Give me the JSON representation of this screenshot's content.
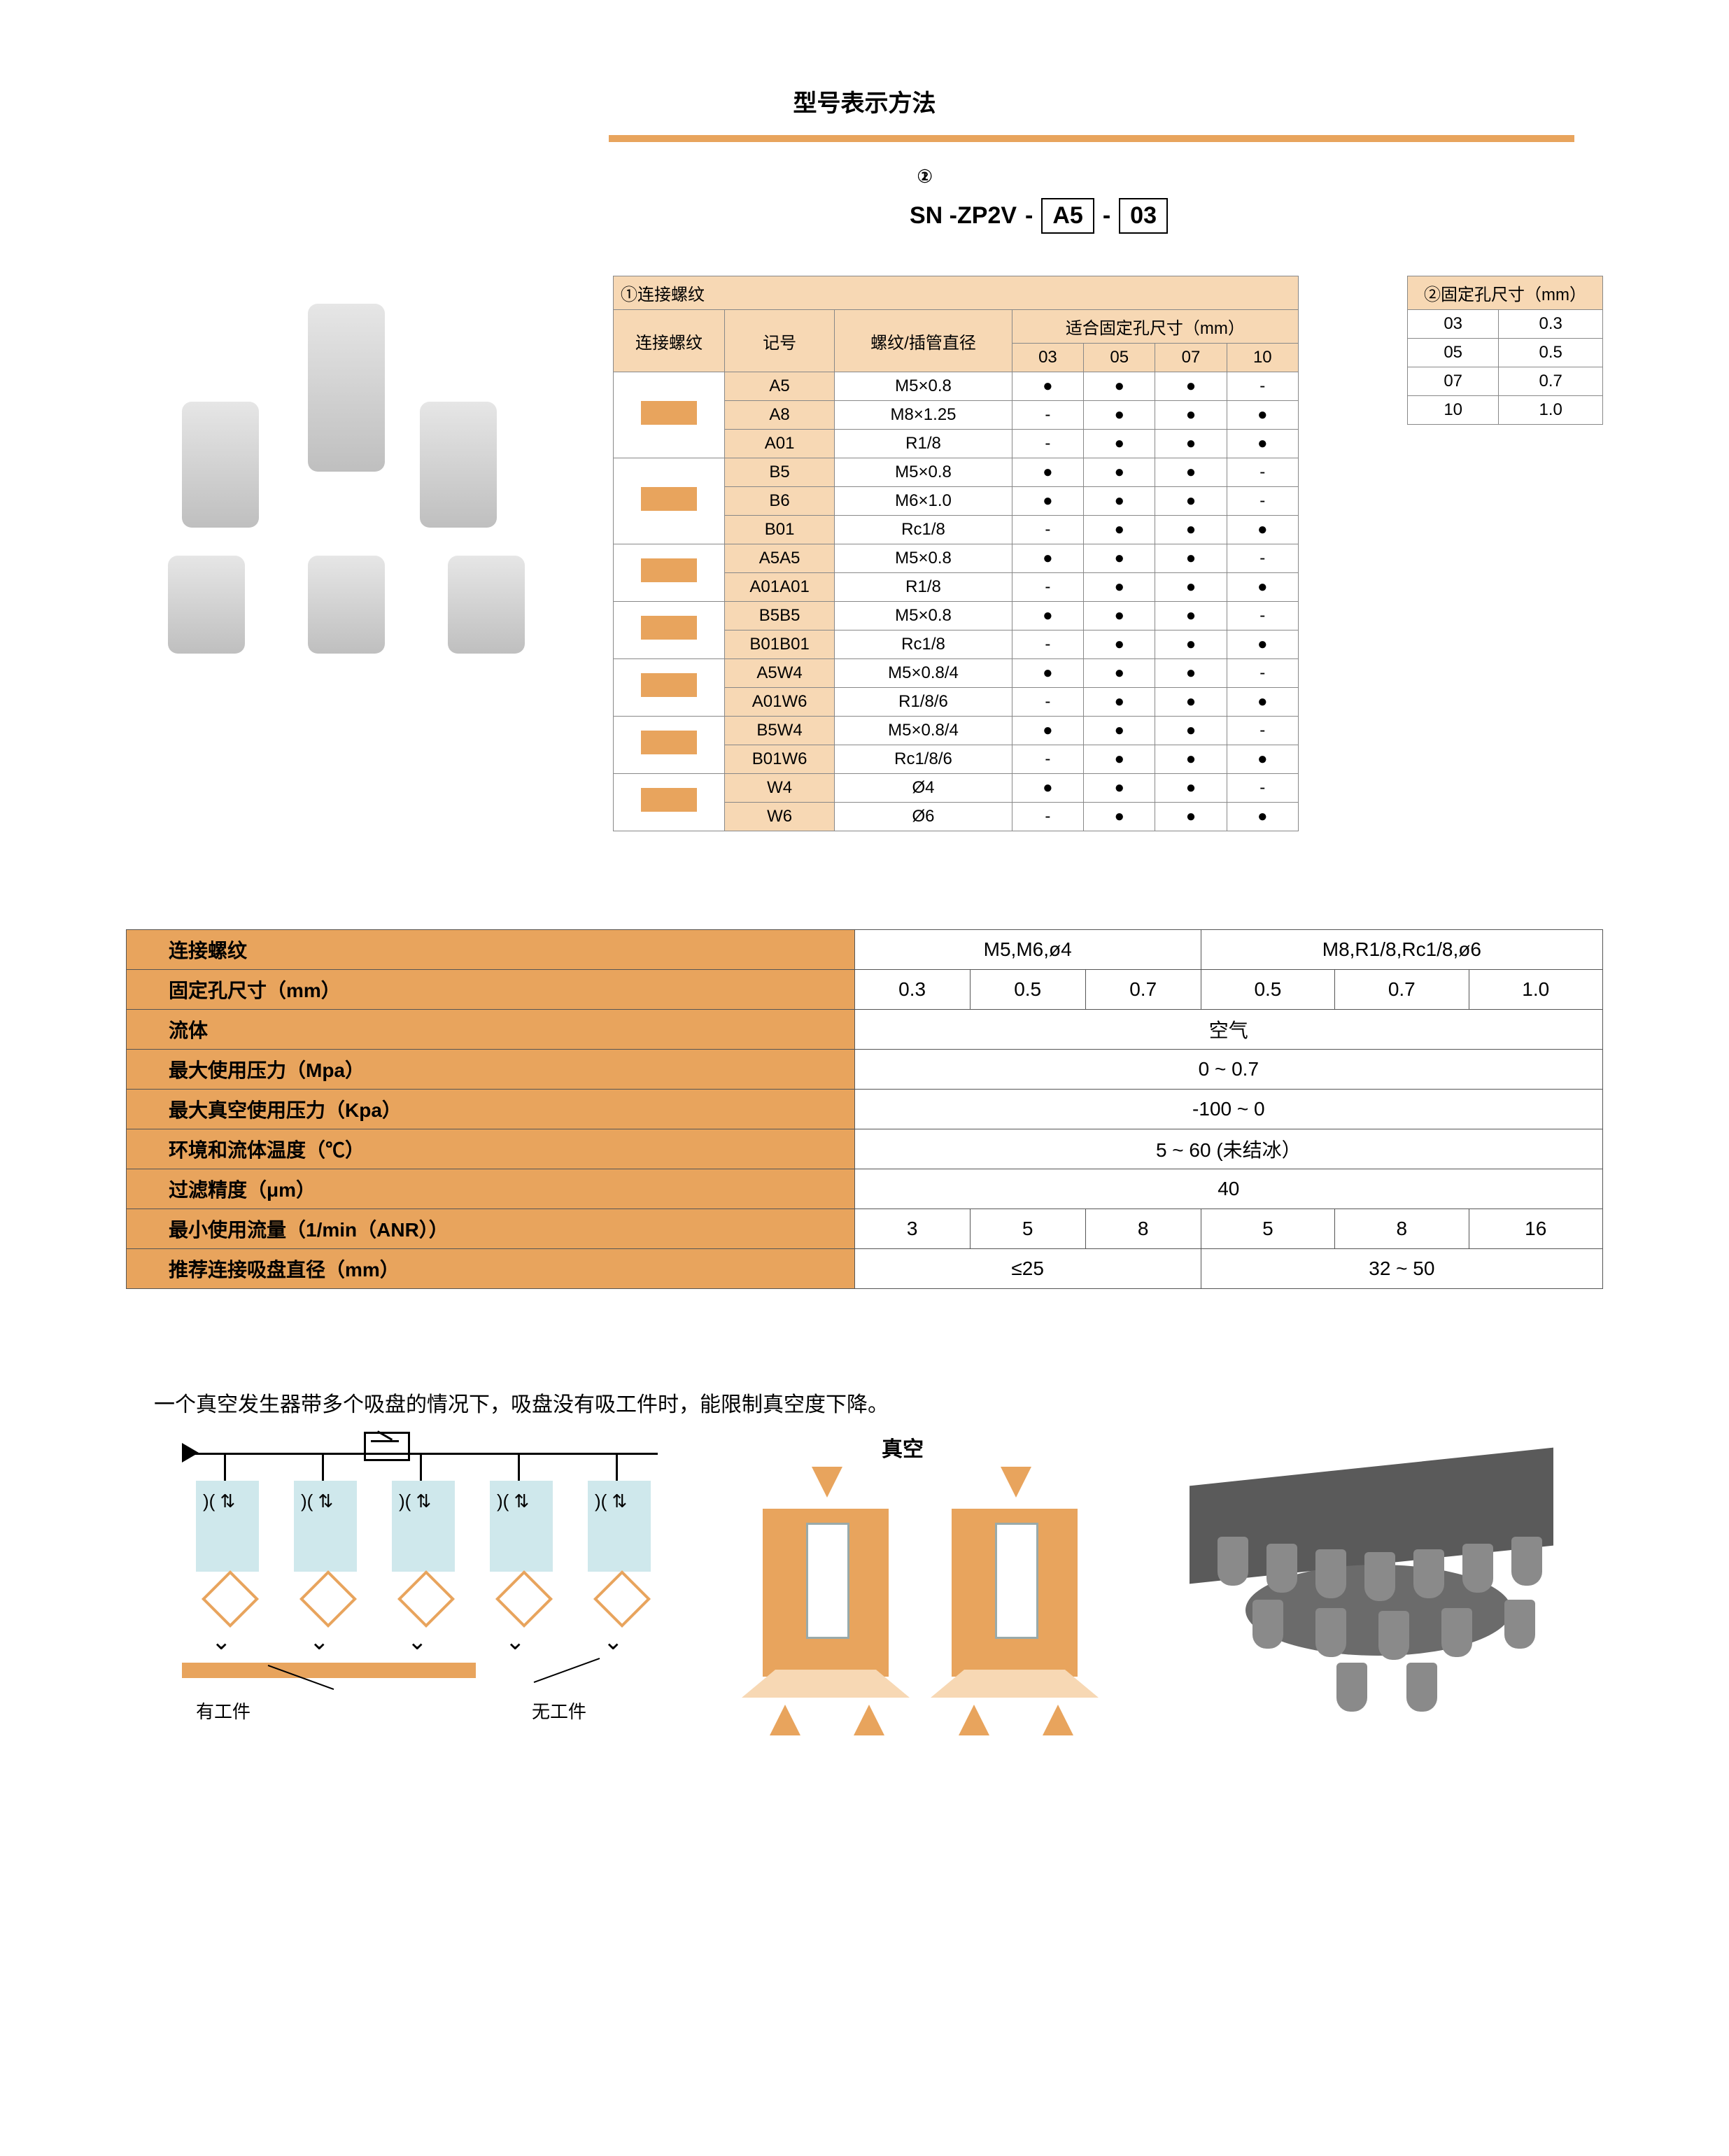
{
  "section_title": "型号表示方法",
  "model": {
    "prefix": "SN -ZP2V",
    "dash": "-",
    "box1": "A5",
    "box2": "03",
    "circ1": "①",
    "circ2": "②"
  },
  "table1": {
    "caption": "①连接螺纹",
    "col_label_thread": "连接螺纹",
    "col_label_code": "记号",
    "col_label_spec": "螺纹/插管直径",
    "col_label_fit_group": "适合固定孔尺寸（mm）",
    "fit_cols": [
      "03",
      "05",
      "07",
      "10"
    ],
    "rows": [
      {
        "group_span": 3,
        "code": "A5",
        "spec": "M5×0.8",
        "fit": [
          "●",
          "●",
          "●",
          "-"
        ]
      },
      {
        "code": "A8",
        "spec": "M8×1.25",
        "fit": [
          "-",
          "●",
          "●",
          "●"
        ]
      },
      {
        "code": "A01",
        "spec": "R1/8",
        "fit": [
          "-",
          "●",
          "●",
          "●"
        ]
      },
      {
        "group_span": 3,
        "code": "B5",
        "spec": "M5×0.8",
        "fit": [
          "●",
          "●",
          "●",
          "-"
        ]
      },
      {
        "code": "B6",
        "spec": "M6×1.0",
        "fit": [
          "●",
          "●",
          "●",
          "-"
        ]
      },
      {
        "code": "B01",
        "spec": "Rc1/8",
        "fit": [
          "-",
          "●",
          "●",
          "●"
        ]
      },
      {
        "group_span": 2,
        "code": "A5A5",
        "spec": "M5×0.8",
        "fit": [
          "●",
          "●",
          "●",
          "-"
        ]
      },
      {
        "code": "A01A01",
        "spec": "R1/8",
        "fit": [
          "-",
          "●",
          "●",
          "●"
        ]
      },
      {
        "group_span": 2,
        "code": "B5B5",
        "spec": "M5×0.8",
        "fit": [
          "●",
          "●",
          "●",
          "-"
        ]
      },
      {
        "code": "B01B01",
        "spec": "Rc1/8",
        "fit": [
          "-",
          "●",
          "●",
          "●"
        ]
      },
      {
        "group_span": 2,
        "code": "A5W4",
        "spec": "M5×0.8/4",
        "fit": [
          "●",
          "●",
          "●",
          "-"
        ]
      },
      {
        "code": "A01W6",
        "spec": "R1/8/6",
        "fit": [
          "-",
          "●",
          "●",
          "●"
        ]
      },
      {
        "group_span": 2,
        "code": "B5W4",
        "spec": "M5×0.8/4",
        "fit": [
          "●",
          "●",
          "●",
          "-"
        ]
      },
      {
        "code": "B01W6",
        "spec": "Rc1/8/6",
        "fit": [
          "-",
          "●",
          "●",
          "●"
        ]
      },
      {
        "group_span": 2,
        "code": "W4",
        "spec": "Ø4",
        "fit": [
          "●",
          "●",
          "●",
          "-"
        ]
      },
      {
        "code": "W6",
        "spec": "Ø6",
        "fit": [
          "-",
          "●",
          "●",
          "●"
        ]
      }
    ]
  },
  "table2": {
    "caption": "②固定孔尺寸（mm）",
    "rows": [
      {
        "c": "03",
        "v": "0.3"
      },
      {
        "c": "05",
        "v": "0.5"
      },
      {
        "c": "07",
        "v": "0.7"
      },
      {
        "c": "10",
        "v": "1.0"
      }
    ]
  },
  "spec": {
    "rows": [
      {
        "label": "连接螺纹",
        "cells": [
          {
            "span": 3,
            "v": "M5,M6,ø4"
          },
          {
            "span": 3,
            "v": "M8,R1/8,Rc1/8,ø6"
          }
        ]
      },
      {
        "label": "固定孔尺寸（mm）",
        "cells": [
          {
            "v": "0.3"
          },
          {
            "v": "0.5"
          },
          {
            "v": "0.7"
          },
          {
            "v": "0.5"
          },
          {
            "v": "0.7"
          },
          {
            "v": "1.0"
          }
        ]
      },
      {
        "label": "流体",
        "cells": [
          {
            "span": 6,
            "v": "空气"
          }
        ]
      },
      {
        "label": "最大使用压力（Mpa）",
        "cells": [
          {
            "span": 6,
            "v": "0 ~ 0.7"
          }
        ]
      },
      {
        "label": "最大真空使用压力（Kpa）",
        "cells": [
          {
            "span": 6,
            "v": "-100 ~ 0"
          }
        ]
      },
      {
        "label": "环境和流体温度（℃）",
        "cells": [
          {
            "span": 6,
            "v": "5 ~ 60 (未结冰）"
          }
        ]
      },
      {
        "label": "过滤精度（μm）",
        "cells": [
          {
            "span": 6,
            "v": "40"
          }
        ]
      },
      {
        "label": "最小使用流量（1/min（ANR））",
        "cells": [
          {
            "v": "3"
          },
          {
            "v": "5"
          },
          {
            "v": "8"
          },
          {
            "v": "5"
          },
          {
            "v": "8"
          },
          {
            "v": "16"
          }
        ]
      },
      {
        "label": "推荐连接吸盘直径（mm）",
        "cells": [
          {
            "span": 3,
            "v": "≤25"
          },
          {
            "span": 3,
            "v": "32 ~ 50"
          }
        ]
      }
    ]
  },
  "desc_line": "一个真空发生器带多个吸盘的情况下，吸盘没有吸工件时，能限制真空度下降。",
  "schematic": {
    "vacuum_label": "真空",
    "with_work": "有工件",
    "without_work": "无工件"
  },
  "colors": {
    "orange": "#e8a45d",
    "orange_light": "#f7d8b4",
    "cyan": "#cfe8ec",
    "gray_dark": "#5a5a5a",
    "gray_mid": "#6b6b6b"
  }
}
